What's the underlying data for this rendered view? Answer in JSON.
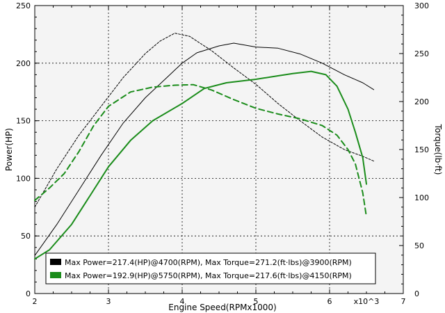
{
  "chart_data": {
    "type": "line",
    "xlabel": "Engine Speed(RPMx1000)",
    "x_multiplier": "x10^3",
    "ylabel_left": "Power(HP)",
    "ylabel_right": "Torque(lb·ft)",
    "xlim": [
      2,
      7
    ],
    "ylim_left": [
      0,
      250
    ],
    "ylim_right": [
      0,
      300
    ],
    "xticks": [
      2,
      3,
      4,
      5,
      6,
      7
    ],
    "yticks_left": [
      0,
      50,
      100,
      150,
      200,
      250
    ],
    "yticks_right": [
      0,
      50,
      100,
      150,
      200,
      250,
      300
    ],
    "grid": true,
    "legend_position": "bottom-center",
    "colors": {
      "black": "#000000",
      "green": "#1a8c1a",
      "plot_bg": "#f4f4f4"
    },
    "series": [
      {
        "axis": "left",
        "color": "#000000",
        "style": "solid",
        "width": 1,
        "points": [
          [
            2.0,
            33
          ],
          [
            2.3,
            60
          ],
          [
            2.6,
            90
          ],
          [
            2.9,
            120
          ],
          [
            3.2,
            148
          ],
          [
            3.5,
            170
          ],
          [
            3.8,
            188
          ],
          [
            4.0,
            200
          ],
          [
            4.2,
            209
          ],
          [
            4.5,
            215
          ],
          [
            4.7,
            217.4
          ],
          [
            5.0,
            214
          ],
          [
            5.3,
            213
          ],
          [
            5.6,
            208
          ],
          [
            5.9,
            200
          ],
          [
            6.2,
            190
          ],
          [
            6.45,
            183
          ],
          [
            6.6,
            177
          ]
        ]
      },
      {
        "axis": "right",
        "color": "#000000",
        "style": "dashed",
        "width": 1,
        "points": [
          [
            2.0,
            90
          ],
          [
            2.3,
            130
          ],
          [
            2.6,
            165
          ],
          [
            2.9,
            195
          ],
          [
            3.2,
            225
          ],
          [
            3.5,
            250
          ],
          [
            3.7,
            263
          ],
          [
            3.9,
            271.2
          ],
          [
            4.1,
            268
          ],
          [
            4.4,
            253
          ],
          [
            4.7,
            235
          ],
          [
            5.0,
            218
          ],
          [
            5.3,
            198
          ],
          [
            5.6,
            180
          ],
          [
            5.9,
            163
          ],
          [
            6.2,
            150
          ],
          [
            6.45,
            143
          ],
          [
            6.6,
            138
          ]
        ]
      },
      {
        "axis": "left",
        "color": "#1a8c1a",
        "style": "solid",
        "width": 2,
        "points": [
          [
            2.0,
            30
          ],
          [
            2.2,
            38
          ],
          [
            2.5,
            60
          ],
          [
            2.8,
            90
          ],
          [
            3.0,
            110
          ],
          [
            3.3,
            133
          ],
          [
            3.6,
            150
          ],
          [
            4.0,
            165
          ],
          [
            4.3,
            178
          ],
          [
            4.6,
            183
          ],
          [
            5.0,
            186
          ],
          [
            5.3,
            189
          ],
          [
            5.5,
            191
          ],
          [
            5.75,
            192.9
          ],
          [
            5.95,
            190
          ],
          [
            6.1,
            180
          ],
          [
            6.25,
            160
          ],
          [
            6.35,
            140
          ],
          [
            6.45,
            118
          ],
          [
            6.5,
            95
          ]
        ]
      },
      {
        "axis": "right",
        "color": "#1a8c1a",
        "style": "dashed",
        "width": 2,
        "points": [
          [
            2.0,
            97
          ],
          [
            2.2,
            110
          ],
          [
            2.4,
            125
          ],
          [
            2.6,
            148
          ],
          [
            2.8,
            175
          ],
          [
            3.0,
            195
          ],
          [
            3.3,
            210
          ],
          [
            3.6,
            215
          ],
          [
            3.9,
            217
          ],
          [
            4.15,
            217.6
          ],
          [
            4.4,
            212
          ],
          [
            4.7,
            202
          ],
          [
            5.0,
            193
          ],
          [
            5.3,
            187
          ],
          [
            5.6,
            182
          ],
          [
            5.9,
            175
          ],
          [
            6.1,
            165
          ],
          [
            6.25,
            150
          ],
          [
            6.35,
            135
          ],
          [
            6.45,
            105
          ],
          [
            6.5,
            80
          ]
        ]
      }
    ],
    "legend": [
      {
        "color": "#000000",
        "label": "Max Power=217.4(HP)@4700(RPM), Max Torque=271.2(ft·lbs)@3900(RPM)"
      },
      {
        "color": "#1a8c1a",
        "label": "Max Power=192.9(HP)@5750(RPM), Max Torque=217.6(ft·lbs)@4150(RPM)"
      }
    ]
  }
}
